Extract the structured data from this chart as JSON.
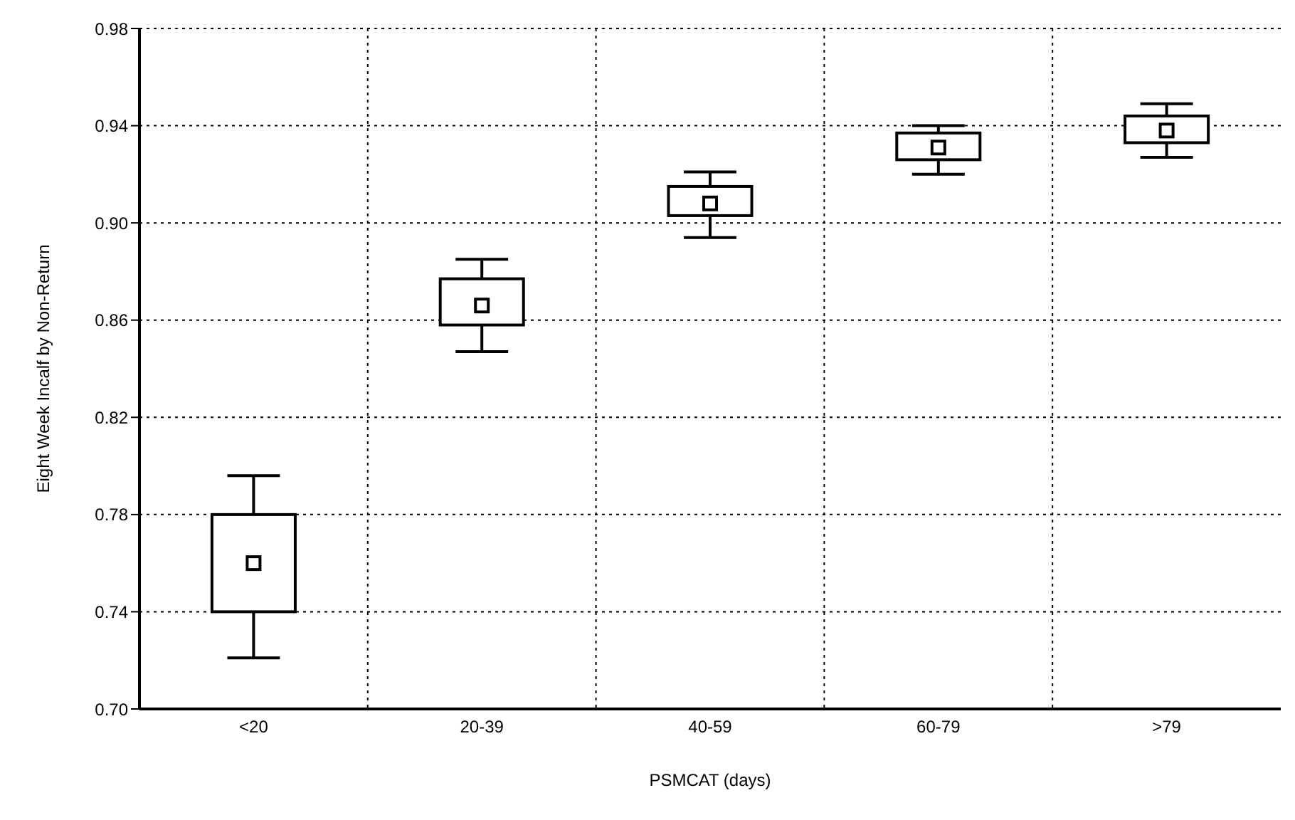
{
  "chart_data": {
    "type": "box",
    "xlabel": "PSMCAT (days)",
    "ylabel": "Eight Week Incalf by Non-Return",
    "categories": [
      "<20",
      "20-39",
      "40-59",
      "60-79",
      ">79"
    ],
    "boxes": [
      {
        "low": 0.721,
        "q1": 0.74,
        "median": 0.76,
        "q3": 0.78,
        "high": 0.796
      },
      {
        "low": 0.847,
        "q1": 0.858,
        "median": 0.866,
        "q3": 0.877,
        "high": 0.885
      },
      {
        "low": 0.894,
        "q1": 0.903,
        "median": 0.908,
        "q3": 0.915,
        "high": 0.921
      },
      {
        "low": 0.92,
        "q1": 0.926,
        "median": 0.931,
        "q3": 0.937,
        "high": 0.94
      },
      {
        "low": 0.927,
        "q1": 0.933,
        "median": 0.938,
        "q3": 0.944,
        "high": 0.949
      }
    ],
    "color": "#000000",
    "ylim": [
      0.7,
      0.98
    ],
    "yticks": [
      {
        "value": 0.7,
        "label": "0.70"
      },
      {
        "value": 0.74,
        "label": "0.74"
      },
      {
        "value": 0.78,
        "label": "0.78"
      },
      {
        "value": 0.82,
        "label": "0.82"
      },
      {
        "value": 0.86,
        "label": "0.86"
      },
      {
        "value": 0.9,
        "label": "0.90"
      },
      {
        "value": 0.94,
        "label": "0.94"
      },
      {
        "value": 0.98,
        "label": "0.98"
      }
    ],
    "grid": true
  }
}
